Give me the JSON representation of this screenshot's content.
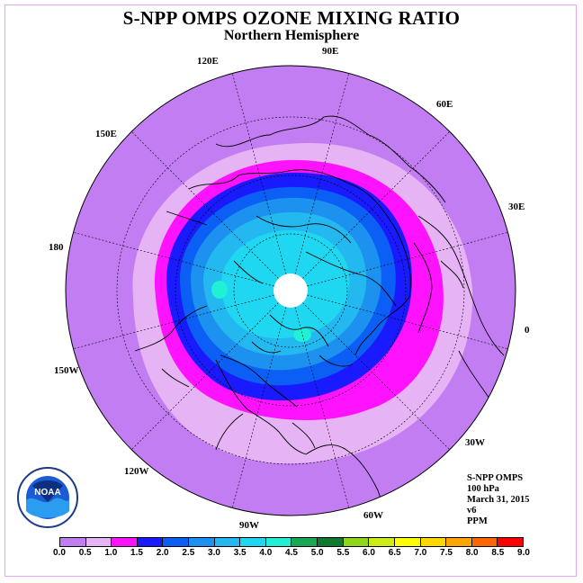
{
  "title": "S-NPP OMPS OZONE MIXING RATIO",
  "subtitle": "Northern Hemisphere",
  "longitude_labels": [
    {
      "id": "lon-120e",
      "text": "120E"
    },
    {
      "id": "lon-90e",
      "text": "90E"
    },
    {
      "id": "lon-60e",
      "text": "60E"
    },
    {
      "id": "lon-150e",
      "text": "150E"
    },
    {
      "id": "lon-30e",
      "text": "30E"
    },
    {
      "id": "lon-180",
      "text": "180"
    },
    {
      "id": "lon-0",
      "text": "0"
    },
    {
      "id": "lon-150w",
      "text": "150W"
    },
    {
      "id": "lon-30w",
      "text": "30W"
    },
    {
      "id": "lon-120w",
      "text": "120W"
    },
    {
      "id": "lon-60w",
      "text": "60W"
    },
    {
      "id": "lon-90w",
      "text": "90W"
    }
  ],
  "info": {
    "instrument": "S-NPP OMPS",
    "level": "100 hPa",
    "date": "March 31, 2015",
    "version": "v6",
    "units": "PPM"
  },
  "logo": {
    "text": "NOAA",
    "icon": "noaa-logo-icon"
  },
  "colorbar": {
    "ticks": [
      "0.0",
      "0.5",
      "1.0",
      "1.5",
      "2.0",
      "2.5",
      "3.0",
      "3.5",
      "4.0",
      "4.5",
      "5.0",
      "5.5",
      "6.0",
      "6.5",
      "7.0",
      "7.5",
      "8.0",
      "8.5",
      "9.0"
    ],
    "colors": [
      "#c27df2",
      "#e6b3f5",
      "#ff13ff",
      "#1a1aff",
      "#0b5ff5",
      "#1c91f0",
      "#23b8ef",
      "#1fd7f0",
      "#1ff0d6",
      "#1aa854",
      "#0f7a2e",
      "#8fd61a",
      "#cdeb14",
      "#ffff00",
      "#ffd700",
      "#ffa500",
      "#ff6600",
      "#ff0000",
      "#8b5a3c"
    ]
  },
  "map_colors": {
    "ocean_fill": "#c27df2",
    "ring_colors": [
      "#e6b3f5",
      "#ff13ff",
      "#1a1aff",
      "#0b5ff5",
      "#1c91f0",
      "#23b8ef",
      "#1fd7f0"
    ],
    "pole_fill": "#ffffff",
    "coast": "#000000"
  }
}
